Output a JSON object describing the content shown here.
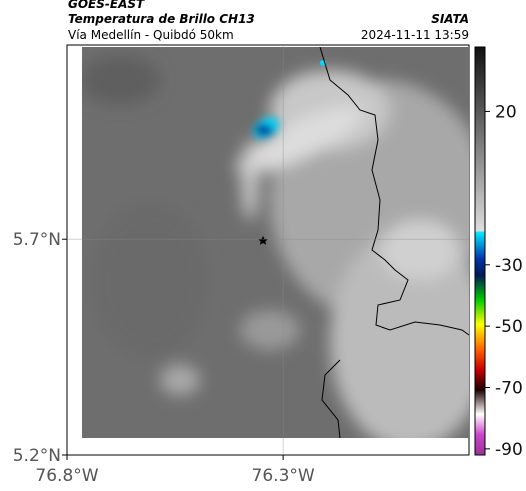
{
  "header": {
    "source": "GOES-EAST",
    "title": "Temperatura de Brillo CH13",
    "subtitle": "Vía Medellín - Quibdó 50km",
    "org": "SIATA",
    "timestamp": "2024-11-11 13:59"
  },
  "map": {
    "xlim": [
      -76.8,
      -75.87
    ],
    "ylim": [
      5.2,
      6.15
    ],
    "xticks": [
      {
        "value": -76.8,
        "label": "76.8°W"
      },
      {
        "value": -76.3,
        "label": "76.3°W"
      }
    ],
    "yticks": [
      {
        "value": 5.2,
        "label": "5.2°N"
      },
      {
        "value": 5.7,
        "label": "5.7°N"
      }
    ]
  },
  "colorbar": {
    "lim": [
      -92,
      41
    ],
    "ticks": [
      20,
      -30,
      -50,
      -70,
      -90
    ]
  }
}
